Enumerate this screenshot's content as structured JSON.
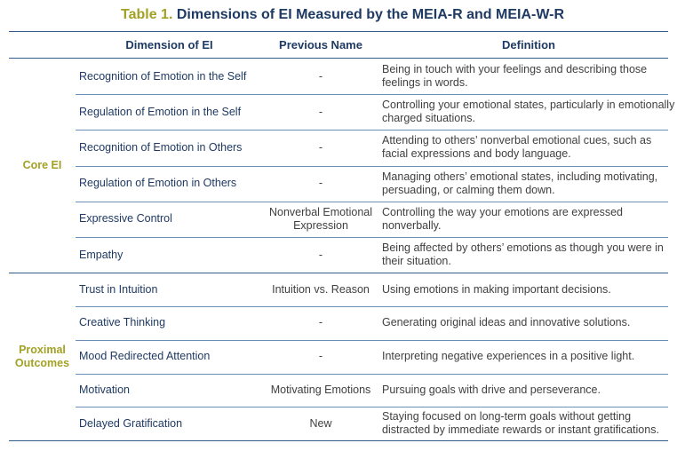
{
  "title": {
    "label": "Table 1.",
    "text": "Dimensions of EI Measured by the MEIA-R and MEIA-W-R"
  },
  "table": {
    "headers": [
      "Dimension of EI",
      "Previous Name",
      "Definition"
    ],
    "groups": [
      {
        "name": "Core EI",
        "rows": [
          [
            "Recognition of Emotion in the Self",
            "-",
            "Being in touch with your feelings and describing those feelings in words."
          ],
          [
            "Regulation of Emotion in the Self",
            "-",
            "Controlling your emotional states, particularly in emotionally charged situations."
          ],
          [
            "Recognition of Emotion in Others",
            "-",
            "Attending to others’ nonverbal emotional cues, such as facial expressions and body language."
          ],
          [
            "Regulation of Emotion in Others",
            "-",
            "Managing others’ emotional states, including motivating, persuading, or calming them down."
          ],
          [
            "Expressive Control",
            "Nonverbal Emotional Expression",
            "Controlling the way your emotions are expressed nonverbally."
          ],
          [
            "Empathy",
            "-",
            "Being affected by others’ emotions as though you were in their situation."
          ]
        ]
      },
      {
        "name": "Proximal Outcomes",
        "rows": [
          [
            "Trust in Intuition",
            "Intuition vs. Reason",
            "Using emotions in making important decisions."
          ],
          [
            "Creative Thinking",
            "-",
            "Generating original ideas and innovative solutions."
          ],
          [
            "Mood Redirected Attention",
            "-",
            "Interpreting negative experiences in a positive light."
          ],
          [
            "Motivation",
            "Motivating Emotions",
            "Pursuing goals with drive and perseverance."
          ],
          [
            "Delayed Gratification",
            "New",
            "Staying focused on long-term goals without getting distracted by immediate rewards or instant gratifications."
          ]
        ]
      }
    ]
  }
}
